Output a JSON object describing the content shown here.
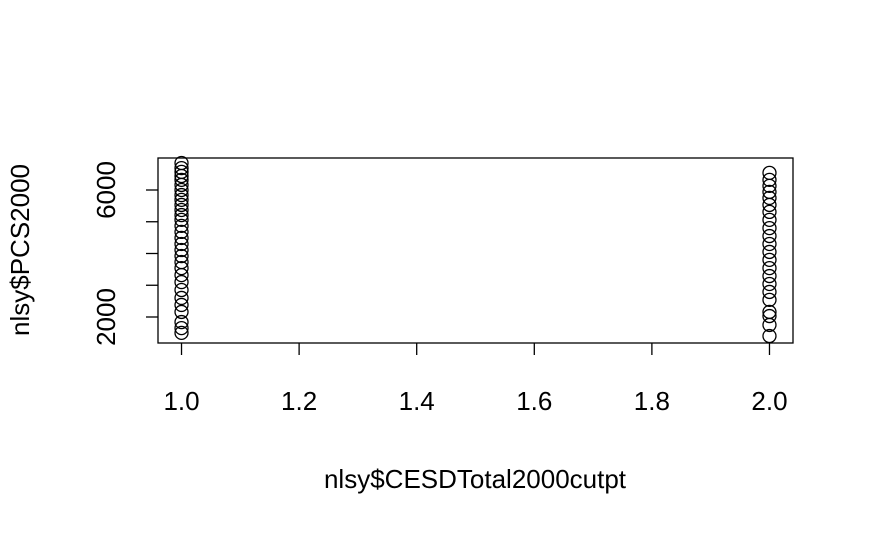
{
  "chart_data": {
    "type": "scatter",
    "x_label": "nlsy$CESDTotal2000cutpt",
    "y_label": "nlsy$PCS2000",
    "x": [
      1,
      1,
      1,
      1,
      1,
      1,
      1,
      1,
      1,
      1,
      1,
      1,
      1,
      1,
      1,
      1,
      1,
      1,
      1,
      1,
      1,
      1,
      1,
      1,
      1,
      1,
      1,
      1,
      1,
      1,
      2,
      2,
      2,
      2,
      2,
      2,
      2,
      2,
      2,
      2,
      2,
      2,
      2,
      2,
      2,
      2,
      2,
      2,
      2,
      2,
      2,
      2
    ],
    "values": [
      6850,
      6690,
      6570,
      6440,
      6320,
      6160,
      6000,
      5840,
      5690,
      5530,
      5370,
      5210,
      5060,
      4870,
      4680,
      4490,
      4300,
      4110,
      3920,
      3730,
      3540,
      3320,
      3100,
      2850,
      2600,
      2380,
      2160,
      1840,
      1650,
      1500,
      6540,
      6320,
      6130,
      5940,
      5750,
      5530,
      5310,
      5060,
      4800,
      4550,
      4300,
      4050,
      3800,
      3540,
      3290,
      3040,
      2790,
      2540,
      2160,
      2030,
      1750,
      1400
    ],
    "color": "#000000",
    "xlim": [
      0.96,
      2.04
    ],
    "xticks": [
      {
        "value": 1,
        "label": "1.0"
      },
      1.2,
      1.4,
      1.6,
      1.8,
      {
        "value": 2,
        "label": "2.0"
      }
    ],
    "ylim": [
      1181,
      7008
    ],
    "yticks": [
      2000,
      {
        "value": 3000,
        "label": null
      },
      {
        "value": 4000,
        "label": null
      },
      {
        "value": 5000,
        "label": null
      },
      6000
    ],
    "grid": false
  }
}
